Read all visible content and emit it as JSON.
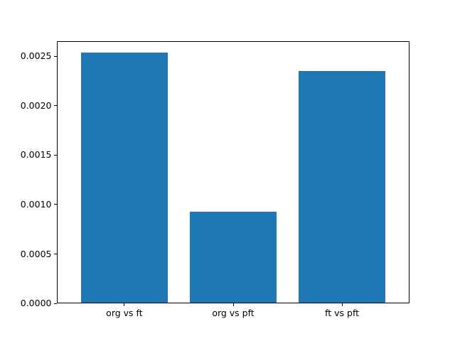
{
  "chart_data": {
    "type": "bar",
    "categories": [
      "org vs ft",
      "org vs pft",
      "ft vs pft"
    ],
    "values": [
      0.00253,
      0.00092,
      0.00234
    ],
    "title": "",
    "xlabel": "",
    "ylabel": "",
    "ylim": [
      0,
      0.002655
    ],
    "yticks": [
      0.0,
      0.0005,
      0.001,
      0.0015,
      0.002,
      0.0025
    ],
    "ytick_labels": [
      "0.0000",
      "0.0005",
      "0.0010",
      "0.0015",
      "0.0020",
      "0.0025"
    ],
    "bar_color": "#1f77b4",
    "frame_color": "#000000",
    "background_color": "#ffffff",
    "bar_width_ratio": 0.8,
    "grid": false,
    "legend": null
  }
}
